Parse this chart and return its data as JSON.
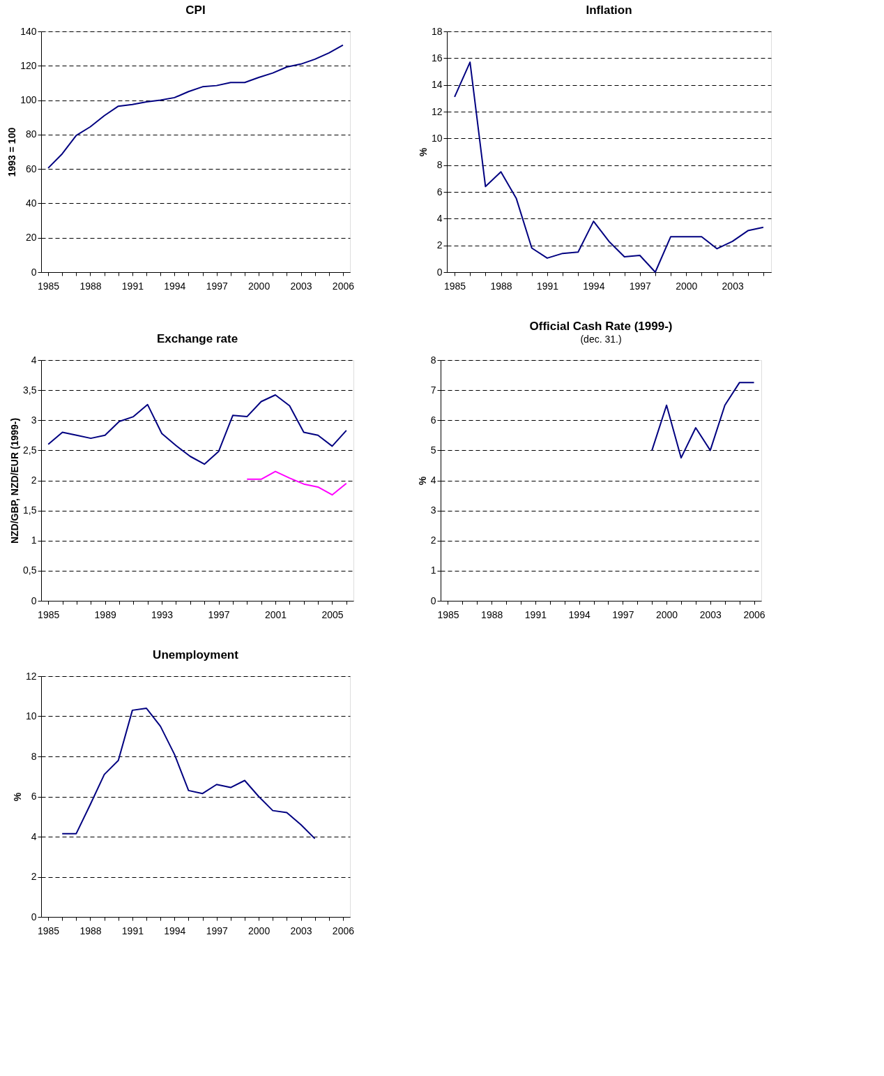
{
  "chart_data": [
    {
      "type": "line",
      "title": "CPI",
      "ylabel": "1993 = 100",
      "categories": [
        "1985",
        null,
        null,
        "1988",
        null,
        null,
        "1991",
        null,
        null,
        "1994",
        null,
        null,
        "1997",
        null,
        null,
        "2000",
        null,
        null,
        "2003",
        null,
        null,
        "2006"
      ],
      "series": [
        {
          "color": "#000080",
          "values": [
            60.5,
            68.8,
            79.5,
            84.5,
            91,
            96.5,
            97.5,
            99,
            100,
            101.5,
            105,
            107.8,
            108.5,
            110.3,
            110.3,
            113.2,
            115.8,
            119.3,
            121,
            123.8,
            127.5,
            132
          ]
        }
      ],
      "ylim": [
        0,
        140
      ],
      "yticks": [
        0,
        20,
        40,
        60,
        80,
        100,
        120,
        140
      ],
      "grid": "y"
    },
    {
      "type": "line",
      "title": "Inflation",
      "ylabel": "%",
      "categories": [
        "1985",
        null,
        null,
        "1988",
        null,
        null,
        "1991",
        null,
        null,
        "1994",
        null,
        null,
        "1997",
        null,
        null,
        "2000",
        null,
        null,
        "2003",
        null,
        null
      ],
      "series": [
        {
          "color": "#000080",
          "values": [
            13.1,
            15.7,
            6.4,
            7.5,
            5.5,
            1.8,
            1.05,
            1.4,
            1.5,
            3.8,
            2.3,
            1.15,
            1.25,
            0,
            2.65,
            2.65,
            2.65,
            1.75,
            2.3,
            3.1,
            3.35
          ]
        }
      ],
      "ylim": [
        0,
        18
      ],
      "yticks": [
        0,
        2,
        4,
        6,
        8,
        10,
        12,
        14,
        16,
        18
      ],
      "grid": "y"
    },
    {
      "type": "line",
      "title": "Exchange rate",
      "ylabel": "NZD/GBP, NZD/EUR (1999-)",
      "categories": [
        "1985",
        null,
        null,
        null,
        "1989",
        null,
        null,
        null,
        "1993",
        null,
        null,
        null,
        "1997",
        null,
        null,
        null,
        "2001",
        null,
        null,
        null,
        "2005",
        null
      ],
      "series": [
        {
          "color": "#000080",
          "values": [
            2.6,
            2.8,
            2.75,
            2.7,
            2.75,
            2.98,
            3.06,
            3.26,
            2.78,
            2.58,
            2.4,
            2.27,
            2.48,
            3.08,
            3.06,
            3.31,
            3.42,
            3.24,
            2.8,
            2.75,
            2.57,
            2.83
          ]
        },
        {
          "color": "#ff00ff",
          "values": [
            null,
            null,
            null,
            null,
            null,
            null,
            null,
            null,
            null,
            null,
            null,
            null,
            null,
            null,
            2.02,
            2.02,
            2.15,
            2.04,
            1.94,
            1.89,
            1.76,
            1.95
          ]
        }
      ],
      "ylim": [
        0,
        4
      ],
      "yticks": [
        0,
        {
          "value": 0.5,
          "label": "0,5"
        },
        1,
        {
          "value": 1.5,
          "label": "1,5"
        },
        2,
        {
          "value": 2.5,
          "label": "2,5"
        },
        3,
        {
          "value": 3.5,
          "label": "3,5"
        },
        4
      ],
      "grid": "y"
    },
    {
      "type": "line",
      "title": "Official Cash Rate (1999-)",
      "subtitle": "(dec. 31.)",
      "ylabel": "%",
      "categories": [
        "1985",
        null,
        null,
        "1988",
        null,
        null,
        "1991",
        null,
        null,
        "1994",
        null,
        null,
        "1997",
        null,
        null,
        "2000",
        null,
        null,
        "2003",
        null,
        null,
        "2006"
      ],
      "series": [
        {
          "color": "#000080",
          "values": [
            null,
            null,
            null,
            null,
            null,
            null,
            null,
            null,
            null,
            null,
            null,
            null,
            null,
            null,
            5.0,
            6.5,
            4.75,
            5.75,
            5.0,
            6.5,
            7.25,
            7.25
          ]
        }
      ],
      "ylim": [
        0,
        8
      ],
      "yticks": [
        0,
        1,
        2,
        3,
        4,
        5,
        6,
        7,
        8
      ],
      "grid": "y"
    },
    {
      "type": "line",
      "title": "Unemployment",
      "ylabel": "%",
      "categories": [
        "1985",
        null,
        null,
        "1988",
        null,
        null,
        "1991",
        null,
        null,
        "1994",
        null,
        null,
        "1997",
        null,
        null,
        "2000",
        null,
        null,
        "2003",
        null,
        null,
        "2006"
      ],
      "series": [
        {
          "color": "#000080",
          "values": [
            null,
            4.15,
            4.15,
            5.6,
            7.1,
            7.8,
            10.3,
            10.4,
            9.5,
            8.1,
            6.3,
            6.15,
            6.6,
            6.45,
            6.8,
            6.0,
            5.3,
            5.2,
            4.6,
            3.9,
            null,
            null
          ]
        }
      ],
      "ylim": [
        0,
        12
      ],
      "yticks": [
        0,
        2,
        4,
        6,
        8,
        10,
        12
      ],
      "grid": "y"
    }
  ]
}
